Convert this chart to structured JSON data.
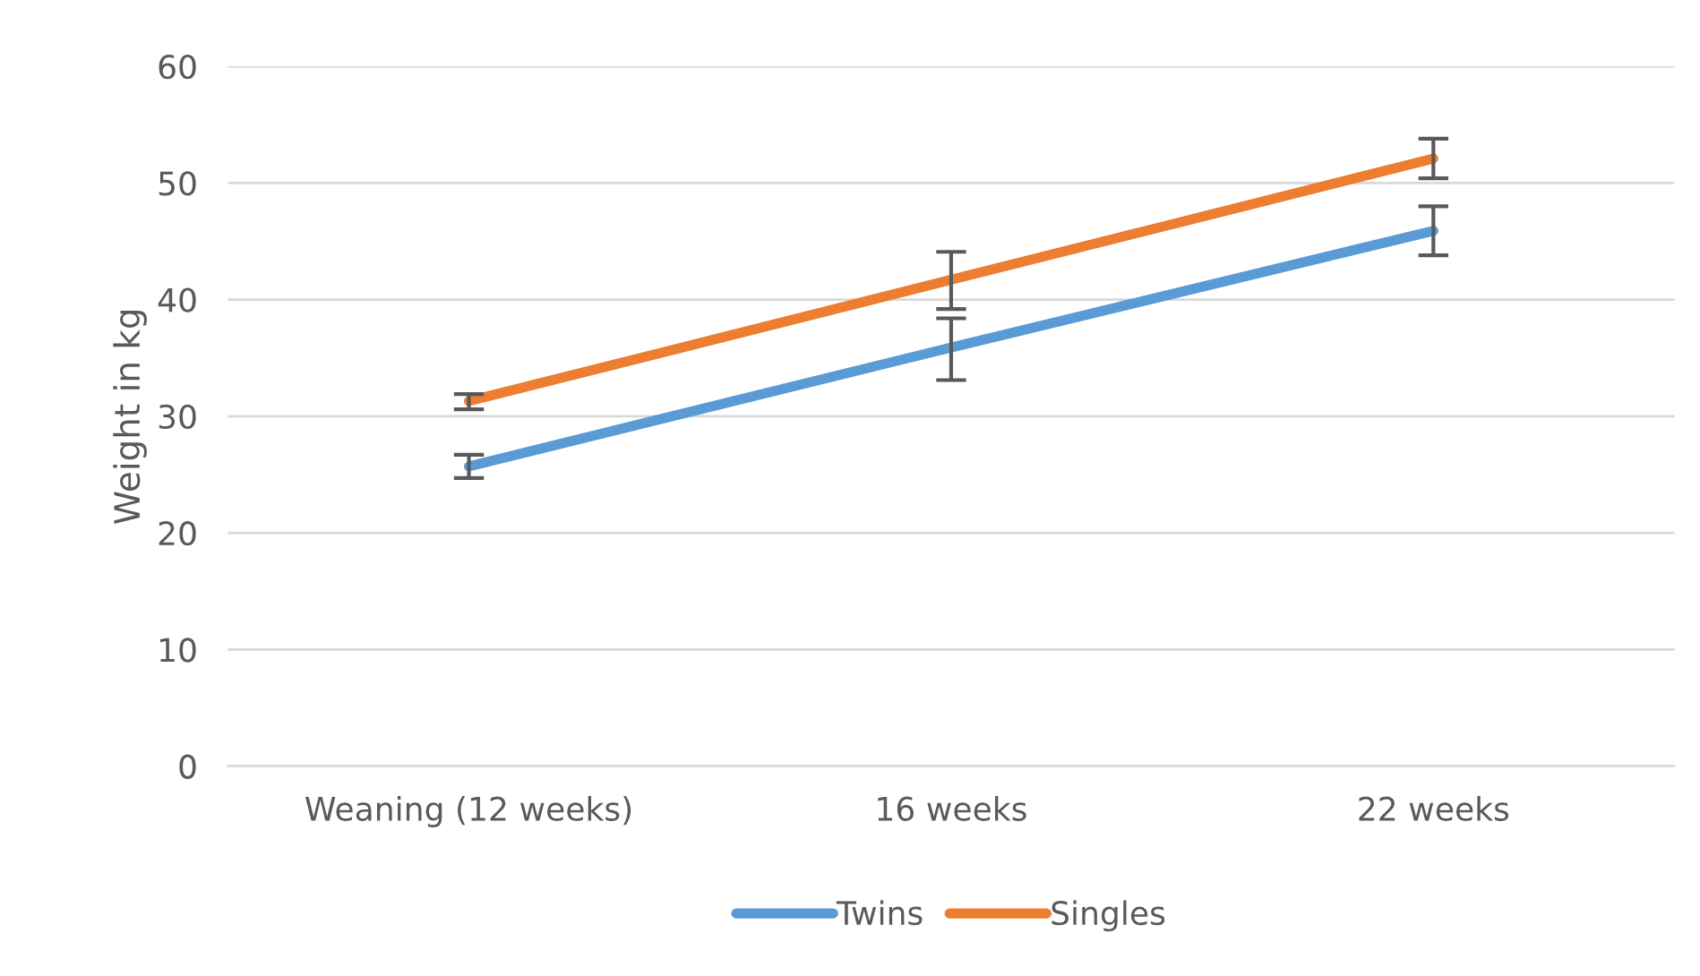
{
  "chart_data": {
    "type": "line",
    "ylabel": "Weight in kg",
    "categories": [
      "Weaning (12 weeks)",
      "16 weeks",
      "22 weeks"
    ],
    "series": [
      {
        "name": "Twins",
        "color": "#5b9bd5",
        "values": [
          25.7,
          35.9,
          45.9
        ],
        "errors": [
          [
            24.7,
            26.7
          ],
          [
            33.1,
            38.4
          ],
          [
            43.8,
            48.0
          ]
        ]
      },
      {
        "name": "Singles",
        "color": "#ed7d31",
        "values": [
          31.3,
          41.7,
          52.1
        ],
        "errors": [
          [
            30.6,
            31.9
          ],
          [
            39.2,
            44.1
          ],
          [
            50.4,
            53.8
          ]
        ]
      }
    ],
    "ylim": [
      0,
      60
    ],
    "yticks": [
      0,
      10,
      20,
      30,
      40,
      50,
      60
    ],
    "grid": "y",
    "legend": "bottom",
    "marker": "none",
    "line_style": "solid"
  }
}
